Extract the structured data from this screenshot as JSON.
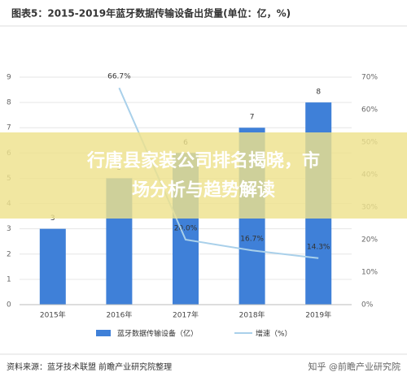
{
  "chart_data": {
    "type": "bar_line",
    "title": "图表5：2015-2019年蓝牙数据传输设备出货量(单位：亿，%)",
    "categories": [
      "2015年",
      "2016年",
      "2017年",
      "2018年",
      "2019年"
    ],
    "series": [
      {
        "name": "蓝牙数据传输设备（亿）",
        "type": "bar",
        "color": "#3f80d8",
        "values": [
          3,
          5,
          6,
          7,
          8
        ]
      },
      {
        "name": "增速（%）",
        "type": "line",
        "color": "#a9d0ea",
        "axis": "y2",
        "values": [
          null,
          66.7,
          20.0,
          16.7,
          14.3
        ],
        "value_labels": [
          null,
          "66.7%",
          "20.0%",
          "16.7%",
          "14.3%"
        ]
      }
    ],
    "ylim": [
      0,
      9
    ],
    "yticks": [
      0,
      1,
      2,
      3,
      4,
      5,
      6,
      7,
      8,
      9
    ],
    "y2lim": [
      0,
      70
    ],
    "y2ticks": [
      {
        "value": 0,
        "label": "0%"
      },
      {
        "value": 10,
        "label": "10%"
      },
      {
        "value": 20,
        "label": "20%"
      },
      {
        "value": 30,
        "label": "30%"
      },
      {
        "value": 40,
        "label": "40%"
      },
      {
        "value": 50,
        "label": "50%"
      },
      {
        "value": 60,
        "label": "60%"
      },
      {
        "value": 70,
        "label": "70%"
      }
    ],
    "grid": true,
    "legend": "bottom"
  },
  "source": "资料来源：蓝牙技术联盟 前瞻产业研究院整理",
  "watermark": "知乎 @前瞻产业研究院",
  "banner": [
    "行唐县家装公司排名揭晓，市",
    "场分析与趋势解读"
  ]
}
